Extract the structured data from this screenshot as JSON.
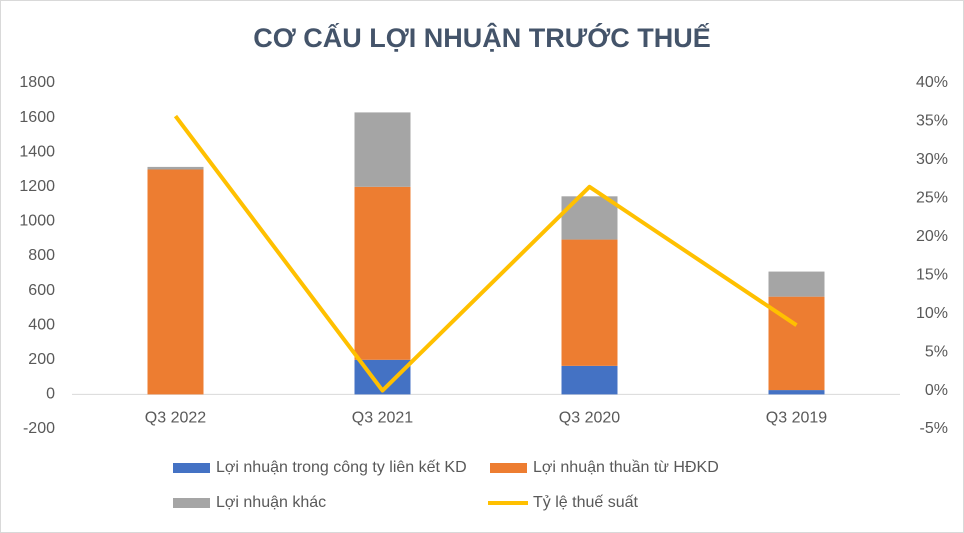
{
  "chart_data": {
    "type": "bar",
    "stacked": true,
    "title": "CƠ CẤU LỢI NHUẬN TRƯỚC THUẾ",
    "categories": [
      "Q3 2022",
      "Q3 2021",
      "Q3 2020",
      "Q3 2019"
    ],
    "series": [
      {
        "name": "Lợi nhuận trong công ty liên kết KD",
        "color": "#4472c4",
        "values": [
          0,
          200,
          165,
          25
        ]
      },
      {
        "name": "Lợi nhuận thuần từ HĐKD",
        "color": "#ed7d31",
        "values": [
          1300,
          1000,
          730,
          540
        ]
      },
      {
        "name": "Lợi nhuận khác",
        "color": "#a5a5a5",
        "values": [
          15,
          430,
          250,
          145
        ]
      },
      {
        "name": "Tỷ lệ thuế suất",
        "color": "#ffc000",
        "type": "line",
        "axis": "y2",
        "values": [
          35.7,
          0,
          26.5,
          8.5
        ]
      }
    ],
    "ylim": [
      -200,
      1800
    ],
    "yticks": [
      -200,
      0,
      200,
      400,
      600,
      800,
      1000,
      1200,
      1400,
      1600,
      1800
    ],
    "y2lim": [
      -5,
      40
    ],
    "y2ticks": [
      {
        "value": -5,
        "label": "-5%"
      },
      {
        "value": 0,
        "label": "0%"
      },
      {
        "value": 5,
        "label": "5%"
      },
      {
        "value": 10,
        "label": "10%"
      },
      {
        "value": 15,
        "label": "15%"
      },
      {
        "value": 20,
        "label": "20%"
      },
      {
        "value": 25,
        "label": "25%"
      },
      {
        "value": 30,
        "label": "30%"
      },
      {
        "value": 35,
        "label": "35%"
      },
      {
        "value": 40,
        "label": "40%"
      }
    ],
    "grid": false,
    "legend": "bottom"
  }
}
